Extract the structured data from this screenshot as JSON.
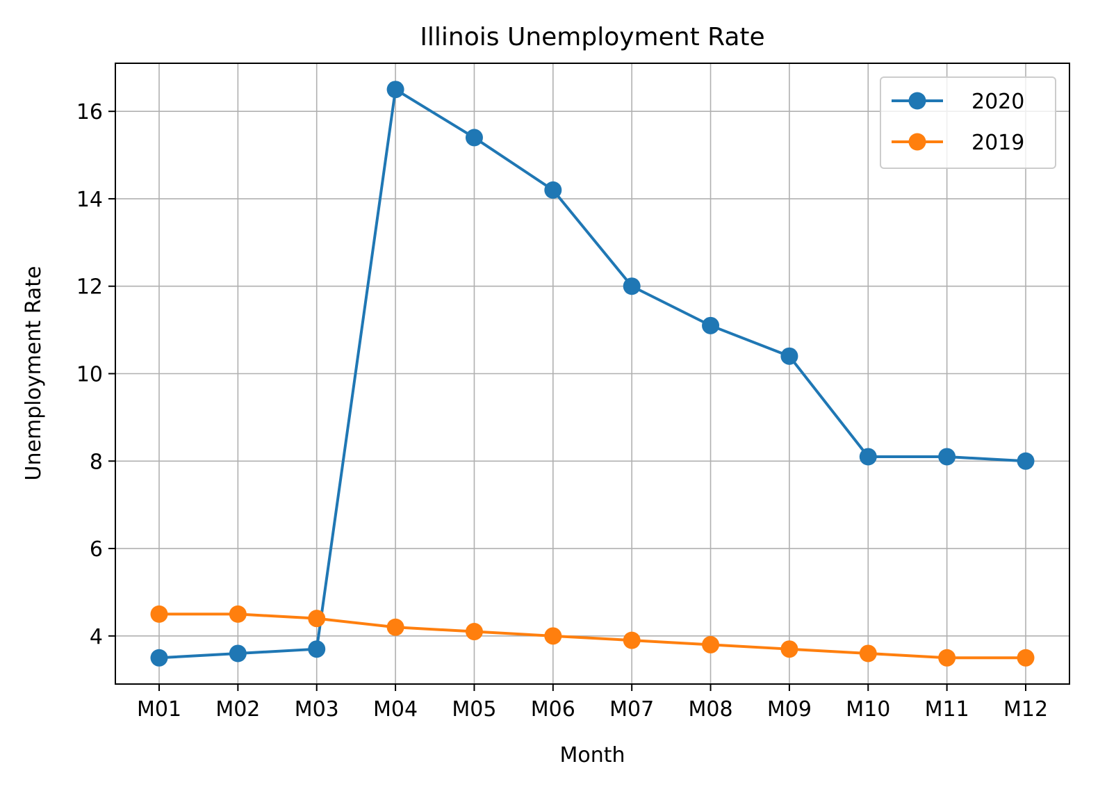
{
  "chart_data": {
    "type": "line",
    "title": "Illinois Unemployment Rate",
    "xlabel": "Month",
    "ylabel": "Unemployment Rate",
    "categories": [
      "M01",
      "M02",
      "M03",
      "M04",
      "M05",
      "M06",
      "M07",
      "M08",
      "M09",
      "M10",
      "M11",
      "M12"
    ],
    "ylim": [
      2.9,
      17.1
    ],
    "yticks": [
      4,
      6,
      8,
      10,
      12,
      14,
      16
    ],
    "grid": true,
    "legend_position": "top-right",
    "series": [
      {
        "name": "2020",
        "color": "#1f77b4",
        "marker": "circle",
        "values": [
          3.5,
          3.6,
          3.7,
          16.5,
          15.4,
          14.2,
          12.0,
          11.1,
          10.4,
          8.1,
          8.1,
          8.0
        ]
      },
      {
        "name": "2019",
        "color": "#ff7f0e",
        "marker": "circle",
        "values": [
          4.5,
          4.5,
          4.4,
          4.2,
          4.1,
          4.0,
          3.9,
          3.8,
          3.7,
          3.6,
          3.5,
          3.5
        ]
      }
    ]
  }
}
